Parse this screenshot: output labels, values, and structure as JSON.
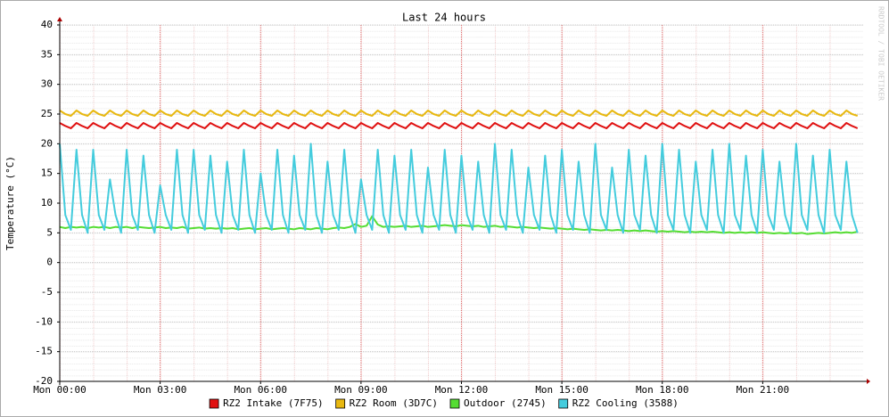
{
  "chart_data": {
    "type": "line",
    "title": "Last 24 hours",
    "y_label": "Temperature (°C)",
    "watermark": "RRDTOOL / TOBI OETIKER",
    "xlim": [
      0,
      1440
    ],
    "xticks": [
      {
        "value": 0,
        "label": "Mon 00:00"
      },
      {
        "value": 180,
        "label": "Mon 03:00"
      },
      {
        "value": 360,
        "label": "Mon 06:00"
      },
      {
        "value": 540,
        "label": "Mon 09:00"
      },
      {
        "value": 720,
        "label": "Mon 12:00"
      },
      {
        "value": 900,
        "label": "Mon 15:00"
      },
      {
        "value": 1080,
        "label": "Mon 18:00"
      },
      {
        "value": 1260,
        "label": "Mon 21:00"
      }
    ],
    "ylim": [
      -20,
      40
    ],
    "yticks": [
      -20,
      -15,
      -10,
      -5,
      0,
      5,
      10,
      15,
      20,
      25,
      30,
      35,
      40
    ],
    "grid": true,
    "legend": "bottom",
    "x": [
      0,
      10,
      20,
      30,
      40,
      50,
      60,
      70,
      80,
      90,
      100,
      110,
      120,
      130,
      140,
      150,
      160,
      170,
      180,
      190,
      200,
      210,
      220,
      230,
      240,
      250,
      260,
      270,
      280,
      290,
      300,
      310,
      320,
      330,
      340,
      350,
      360,
      370,
      380,
      390,
      400,
      410,
      420,
      430,
      440,
      450,
      460,
      470,
      480,
      490,
      500,
      510,
      520,
      530,
      540,
      550,
      560,
      570,
      580,
      590,
      600,
      610,
      620,
      630,
      640,
      650,
      660,
      670,
      680,
      690,
      700,
      710,
      720,
      730,
      740,
      750,
      760,
      770,
      780,
      790,
      800,
      810,
      820,
      830,
      840,
      850,
      860,
      870,
      880,
      890,
      900,
      910,
      920,
      930,
      940,
      950,
      960,
      970,
      980,
      990,
      1000,
      1010,
      1020,
      1030,
      1040,
      1050,
      1060,
      1070,
      1080,
      1090,
      1100,
      1110,
      1120,
      1130,
      1140,
      1150,
      1160,
      1170,
      1180,
      1190,
      1200,
      1210,
      1220,
      1230,
      1240,
      1250,
      1260,
      1270,
      1280,
      1290,
      1300,
      1310,
      1320,
      1330,
      1340,
      1350,
      1360,
      1370,
      1380,
      1390,
      1400,
      1410,
      1420,
      1430
    ],
    "series": [
      {
        "name": "RZ2 Intake (7F75)",
        "color": "#e01010",
        "values": [
          23.5,
          23,
          22.6,
          23.5,
          23,
          22.6,
          23.5,
          23,
          22.6,
          23.5,
          23,
          22.6,
          23.5,
          23,
          22.6,
          23.5,
          23,
          22.6,
          23.5,
          23,
          22.6,
          23.5,
          23,
          22.6,
          23.5,
          23,
          22.6,
          23.5,
          23,
          22.6,
          23.5,
          23,
          22.6,
          23.5,
          23,
          22.6,
          23.5,
          23,
          22.6,
          23.5,
          23,
          22.6,
          23.5,
          23,
          22.6,
          23.5,
          23,
          22.6,
          23.5,
          23,
          22.6,
          23.5,
          23,
          22.6,
          23.5,
          23,
          22.6,
          23.5,
          23,
          22.6,
          23.5,
          23,
          22.6,
          23.5,
          23,
          22.6,
          23.5,
          23,
          22.6,
          23.5,
          23,
          22.6,
          23.5,
          23,
          22.6,
          23.5,
          23,
          22.6,
          23.5,
          23,
          22.6,
          23.5,
          23,
          22.6,
          23.5,
          23,
          22.6,
          23.5,
          23,
          22.6,
          23.5,
          23,
          22.6,
          23.5,
          23,
          22.6,
          23.5,
          23,
          22.6,
          23.5,
          23,
          22.6,
          23.5,
          23,
          22.6,
          23.5,
          23,
          22.6,
          23.5,
          23,
          22.6,
          23.5,
          23,
          22.6,
          23.5,
          23,
          22.6,
          23.5,
          23,
          22.6,
          23.5,
          23,
          22.6,
          23.5,
          23,
          22.6,
          23.5,
          23,
          22.6,
          23.5,
          23,
          22.6,
          23.5,
          23,
          22.6,
          23.5,
          23,
          22.6,
          23.5,
          23,
          22.6,
          23.5,
          23,
          22.6
        ]
      },
      {
        "name": "RZ2 Room (3D7C)",
        "color": "#e8b810",
        "values": [
          25.6,
          25,
          24.7,
          25.6,
          25,
          24.7,
          25.6,
          25,
          24.7,
          25.6,
          25,
          24.7,
          25.6,
          25,
          24.7,
          25.6,
          25,
          24.7,
          25.6,
          25,
          24.7,
          25.6,
          25,
          24.7,
          25.6,
          25,
          24.7,
          25.6,
          25,
          24.7,
          25.6,
          25,
          24.7,
          25.6,
          25,
          24.7,
          25.6,
          25,
          24.7,
          25.6,
          25,
          24.7,
          25.6,
          25,
          24.7,
          25.6,
          25,
          24.7,
          25.6,
          25,
          24.7,
          25.6,
          25,
          24.7,
          25.6,
          25,
          24.7,
          25.6,
          25,
          24.7,
          25.6,
          25,
          24.7,
          25.6,
          25,
          24.7,
          25.6,
          25,
          24.7,
          25.6,
          25,
          24.7,
          25.6,
          25,
          24.7,
          25.6,
          25,
          24.7,
          25.6,
          25,
          24.7,
          25.6,
          25,
          24.7,
          25.6,
          25,
          24.7,
          25.6,
          25,
          24.7,
          25.6,
          25,
          24.7,
          25.6,
          25,
          24.7,
          25.6,
          25,
          24.7,
          25.6,
          25,
          24.7,
          25.6,
          25,
          24.7,
          25.6,
          25,
          24.7,
          25.6,
          25,
          24.7,
          25.6,
          25,
          24.7,
          25.6,
          25,
          24.7,
          25.6,
          25,
          24.7,
          25.6,
          25,
          24.7,
          25.6,
          25,
          24.7,
          25.6,
          25,
          24.7,
          25.6,
          25,
          24.7,
          25.6,
          25,
          24.7,
          25.6,
          25,
          24.7,
          25.6,
          25,
          24.7,
          25.6,
          25,
          24.7
        ]
      },
      {
        "name": "Outdoor (2745)",
        "color": "#55dd33",
        "values": [
          6,
          5.8,
          6,
          5.9,
          6,
          5.8,
          6,
          5.9,
          6,
          5.8,
          6,
          5.9,
          6,
          5.8,
          6,
          5.9,
          5.8,
          5.9,
          6,
          5.8,
          5.9,
          5.8,
          6,
          5.7,
          5.8,
          5.9,
          5.7,
          5.8,
          5.7,
          5.8,
          5.7,
          5.8,
          5.6,
          5.7,
          5.8,
          5.6,
          5.7,
          5.8,
          5.6,
          5.7,
          5.8,
          5.7,
          5.6,
          5.8,
          5.7,
          5.6,
          5.8,
          5.7,
          5.6,
          5.8,
          5.9,
          5.8,
          6,
          6.5,
          6,
          6.2,
          7.8,
          6.4,
          6,
          6.1,
          6,
          6.1,
          6.2,
          6,
          6.1,
          6.2,
          6,
          6.1,
          6.2,
          6.3,
          6.2,
          6.1,
          6.3,
          6.2,
          6.1,
          6.2,
          6,
          6.1,
          6.2,
          6,
          6.1,
          6,
          5.9,
          6,
          5.9,
          5.8,
          5.9,
          5.8,
          5.7,
          5.8,
          5.7,
          5.6,
          5.7,
          5.6,
          5.5,
          5.6,
          5.5,
          5.4,
          5.5,
          5.4,
          5.5,
          5.4,
          5.3,
          5.4,
          5.3,
          5.4,
          5.3,
          5.2,
          5.3,
          5.2,
          5.3,
          5.2,
          5.1,
          5.2,
          5.1,
          5.2,
          5.1,
          5.2,
          5.1,
          5,
          5.1,
          5,
          5.1,
          5,
          5.1,
          5,
          5.1,
          5,
          4.9,
          5,
          4.9,
          5,
          4.9,
          5,
          4.8,
          4.9,
          5,
          4.9,
          5,
          5.1,
          5,
          5.1,
          5,
          5.2
        ]
      },
      {
        "name": "RZ2 Cooling (3588)",
        "color": "#44ccdd",
        "values": [
          20,
          8,
          5.5,
          19,
          8,
          5,
          19,
          8,
          5.5,
          14,
          8,
          5,
          19,
          8,
          5.5,
          18,
          8,
          5,
          13,
          8,
          5.5,
          19,
          8,
          5,
          19,
          8,
          5.5,
          18,
          8,
          5,
          17,
          8,
          5.5,
          19,
          8,
          5,
          15,
          8,
          5.5,
          19,
          8,
          5,
          18,
          8,
          5.5,
          20,
          8,
          5,
          17,
          8,
          5.5,
          19,
          8,
          5,
          14,
          8,
          5.5,
          19,
          8,
          5,
          18,
          8,
          5.5,
          19,
          8,
          5,
          16,
          8,
          5.5,
          19,
          8,
          5,
          18,
          8,
          5.5,
          17,
          8,
          5,
          20,
          8,
          5.5,
          19,
          8,
          5,
          16,
          8,
          5.5,
          18,
          8,
          5,
          19,
          8,
          5.5,
          17,
          8,
          5,
          20,
          8,
          5.5,
          16,
          8,
          5,
          19,
          8,
          5.5,
          18,
          8,
          5,
          20,
          8,
          5.5,
          19,
          8,
          5,
          17,
          8,
          5.5,
          19,
          8,
          5,
          20,
          8,
          5.5,
          18,
          8,
          5,
          19,
          8,
          5.5,
          17,
          8,
          5,
          20,
          8,
          5.5,
          18,
          8,
          5,
          19,
          8,
          5.5,
          17,
          8,
          5
        ]
      }
    ]
  }
}
